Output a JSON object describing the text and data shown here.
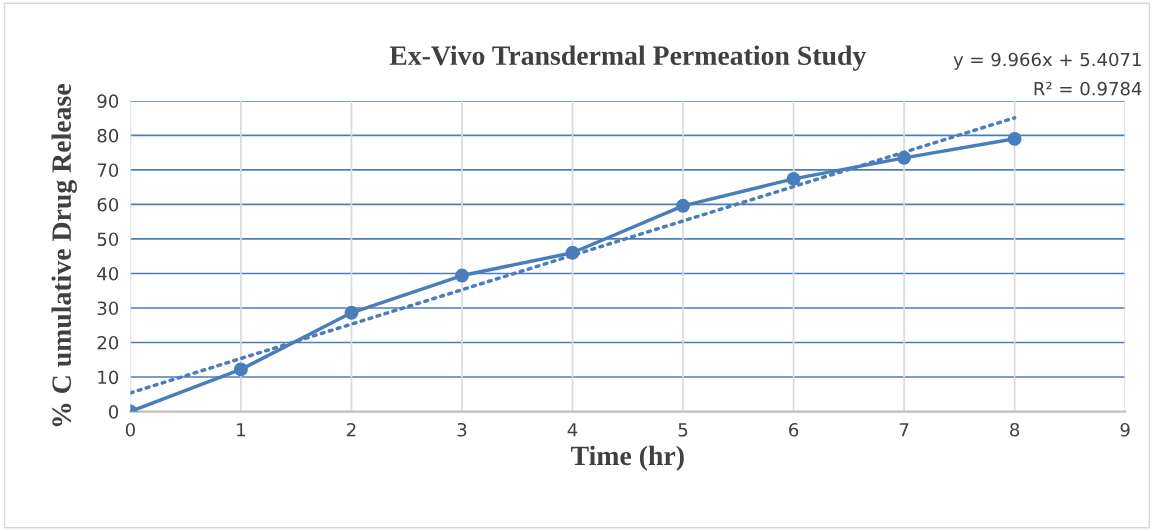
{
  "chart_data": {
    "type": "line",
    "title": "Ex-Vivo Transdermal Permeation Study",
    "xlabel": "Time (hr)",
    "ylabel": "% C umulative Drug Release",
    "x": [
      0,
      1,
      2,
      3,
      4,
      5,
      6,
      7,
      8
    ],
    "series": [
      {
        "color": "#4a7ebb",
        "values": [
          0,
          12.2,
          28.6,
          39.4,
          46.0,
          59.6,
          67.4,
          73.5,
          79.0
        ],
        "marker": "circle",
        "line_style": "solid"
      },
      {
        "type": "line",
        "color": "#4a7ebb",
        "x": [
          0,
          8
        ],
        "values": [
          5.4,
          85.1
        ],
        "marker": "none",
        "line_style": "dotted"
      }
    ],
    "xlim": [
      0,
      9
    ],
    "xticks": [
      0,
      1,
      2,
      3,
      4,
      5,
      6,
      7,
      8,
      9
    ],
    "ylim": [
      0,
      90
    ],
    "yticks": [
      0,
      10,
      20,
      30,
      40,
      50,
      60,
      70,
      80,
      90
    ],
    "grid": true,
    "annotations": [
      "y = 9.966x + 5.4071",
      "R² = 0.9784"
    ]
  }
}
